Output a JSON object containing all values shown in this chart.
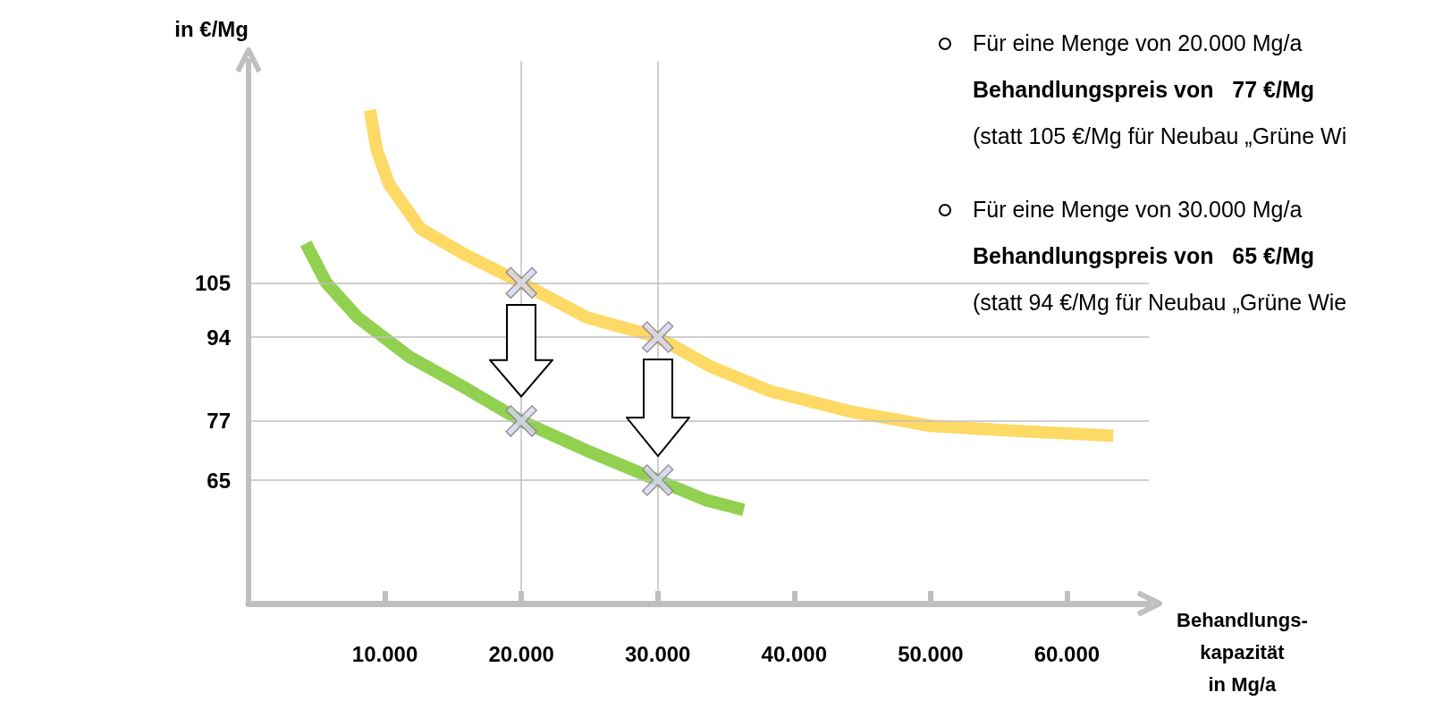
{
  "chart_data": {
    "type": "line",
    "ylabel": "in €/Mg",
    "xlabel": "Behandlungs-\nkapazität\nin Mg/a",
    "xlim": [
      0,
      66000
    ],
    "xticks": [
      {
        "value": 10000,
        "label": "10.000"
      },
      {
        "value": 20000,
        "label": "20.000"
      },
      {
        "value": 30000,
        "label": "30.000"
      },
      {
        "value": 40000,
        "label": "40.000"
      },
      {
        "value": 50000,
        "label": "50.000"
      },
      {
        "value": 60000,
        "label": "60.000"
      }
    ],
    "ylim": [
      40,
      150
    ],
    "yticks": [
      65,
      77,
      94,
      105
    ],
    "series": [
      {
        "type": "line",
        "color": "#ffd966",
        "marker": "none",
        "x": [
          8900,
          9400,
          10300,
          12600,
          15700,
          20000,
          24800,
          30000,
          33900,
          38300,
          44000,
          50000,
          56300,
          63400
        ],
        "values": [
          140,
          132,
          125,
          116,
          111,
          105,
          98,
          94,
          88,
          83,
          79,
          76,
          75,
          74
        ]
      },
      {
        "type": "line",
        "color": "#92d050",
        "marker": "none",
        "x": [
          4200,
          5700,
          8000,
          11800,
          15700,
          20000,
          24800,
          30000,
          33500,
          36300
        ],
        "values": [
          113,
          105,
          98,
          90,
          84,
          77,
          71,
          65,
          61,
          59
        ]
      },
      {
        "type": "scatter",
        "color": "#d4d4f2",
        "marker": "cross",
        "x": [
          20000,
          30000,
          20000,
          30000
        ],
        "values": [
          105,
          94,
          77,
          65
        ]
      }
    ],
    "ref_lines": [
      {
        "axis": "y",
        "value": 105,
        "color": "#bfbfbf"
      },
      {
        "axis": "y",
        "value": 94,
        "color": "#bfbfbf"
      },
      {
        "axis": "y",
        "value": 77,
        "color": "#bfbfbf"
      },
      {
        "axis": "y",
        "value": 65,
        "color": "#bfbfbf"
      },
      {
        "axis": "x",
        "value": 20000,
        "color": "#bfbfbf"
      },
      {
        "axis": "x",
        "value": 30000,
        "color": "#bfbfbf"
      }
    ],
    "annotations": [
      "Für eine Menge von 20.000 Mg/a",
      "Behandlungspreis von   77 €/Mg",
      "(statt 105 €/Mg für Neubau „Grüne Wi",
      "Für eine Menge von 30.000 Mg/a",
      "Behandlungspreis von   65 €/Mg",
      "(statt 94 €/Mg für Neubau „Grüne Wie"
    ]
  }
}
